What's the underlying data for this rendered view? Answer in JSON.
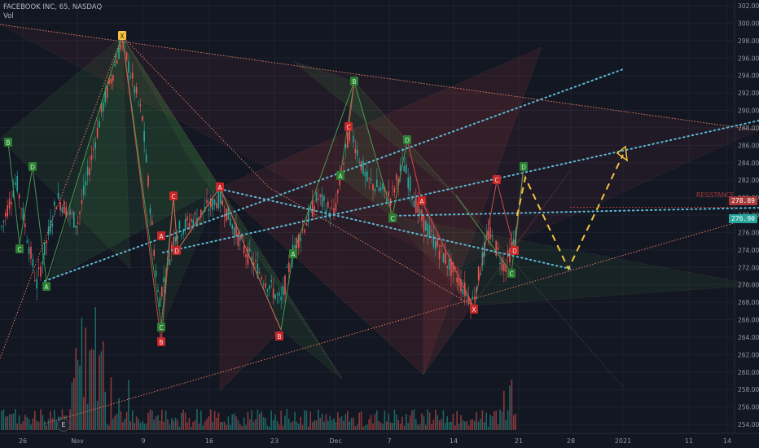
{
  "header": {
    "symbol_line": "FACEBOOK INC, 65, NASDAQ",
    "volume_label": "Vol"
  },
  "price_axis": {
    "labels": [
      "302.00",
      "300.00",
      "298.00",
      "296.00",
      "294.00",
      "292.00",
      "290.00",
      "288.00",
      "286.00",
      "284.00",
      "282.00",
      "280.00",
      "278.00",
      "276.00",
      "274.00",
      "272.00",
      "270.00",
      "268.00",
      "266.00",
      "264.00",
      "262.00",
      "260.00",
      "258.00",
      "256.00",
      "254.00"
    ]
  },
  "time_axis": {
    "labels": [
      "26",
      "Nov",
      "9",
      "16",
      "23",
      "Dec",
      "7",
      "14",
      "21",
      "28",
      "2021",
      "11",
      "14"
    ]
  },
  "tags": {
    "resistance_label": "RESISTANCE",
    "resistance_price": "278.89",
    "last_price": "276.90",
    "resistance_color": "#a83a3a",
    "last_color": "#26a69a"
  },
  "events_badge": "E",
  "pattern_points": [
    {
      "label": "B",
      "color": "green"
    },
    {
      "label": "C",
      "color": "green"
    },
    {
      "label": "D",
      "color": "green"
    },
    {
      "label": "A",
      "color": "green"
    },
    {
      "label": "X",
      "color": "yellow"
    },
    {
      "label": "C",
      "color": "green"
    },
    {
      "label": "B",
      "color": "red"
    },
    {
      "label": "A",
      "color": "red"
    },
    {
      "label": "D",
      "color": "red"
    },
    {
      "label": "C",
      "color": "red"
    },
    {
      "label": "A",
      "color": "red"
    },
    {
      "label": "B",
      "color": "red"
    },
    {
      "label": "A",
      "color": "green"
    },
    {
      "label": "B",
      "color": "green"
    },
    {
      "label": "C",
      "color": "red"
    },
    {
      "label": "A",
      "color": "green"
    },
    {
      "label": "D",
      "color": "green"
    },
    {
      "label": "C",
      "color": "green"
    },
    {
      "label": "A",
      "color": "red"
    },
    {
      "label": "X",
      "color": "red"
    },
    {
      "label": "C",
      "color": "red"
    },
    {
      "label": "D",
      "color": "red"
    },
    {
      "label": "C",
      "color": "green"
    },
    {
      "label": "D",
      "color": "green"
    }
  ],
  "colors": {
    "background": "#131722",
    "grid": "#1e2230",
    "up": "#26a69a",
    "down": "#ef5350",
    "projection": "#f5c242",
    "trend_dots": "#5fb7d4"
  }
}
